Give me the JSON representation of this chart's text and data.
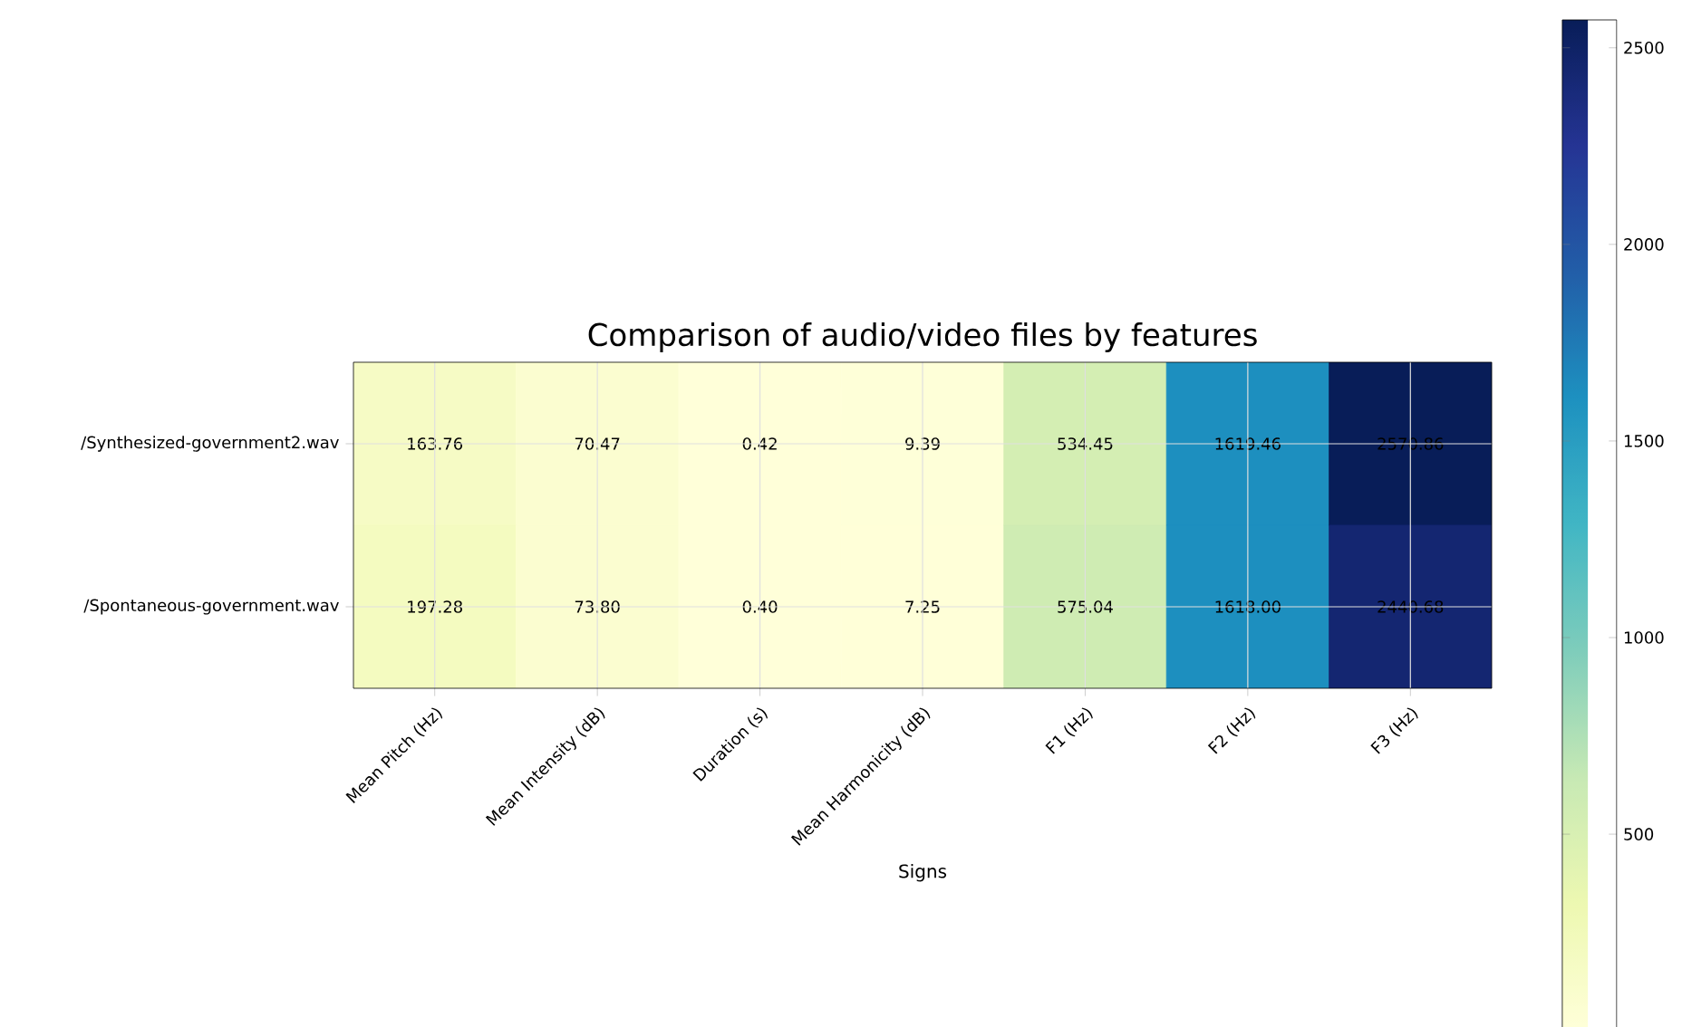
{
  "chart_data": {
    "type": "heatmap",
    "title": "Comparison of audio/video files by features",
    "xlabel": "Signs",
    "categories": [
      "Mean Pitch (Hz)",
      "Mean Intensity (dB)",
      "Duration (s)",
      "Mean Harmonicity (dB)",
      "F1 (Hz)",
      "F2 (Hz)",
      "F3 (Hz)"
    ],
    "y_categories": [
      "/Synthesized-government2.wav",
      "/Spontaneous-government.wav"
    ],
    "cells": [
      [
        163.76,
        70.47,
        0.42,
        9.39,
        534.45,
        1619.46,
        2570.86
      ],
      [
        197.28,
        73.8,
        0.4,
        7.25,
        575.04,
        1618.0,
        2440.68
      ]
    ],
    "cell_labels": [
      [
        "163.76",
        "70.47",
        "0.42",
        "9.39",
        "534.45",
        "1619.46",
        "2570.86"
      ],
      [
        "197.28",
        "73.80",
        "0.40",
        "7.25",
        "575.04",
        "1618.00",
        "2440.68"
      ]
    ],
    "clim": [
      0.4,
      2570.86
    ],
    "cticks": [
      500,
      1000,
      1500,
      2000,
      2500
    ],
    "grid": true
  }
}
